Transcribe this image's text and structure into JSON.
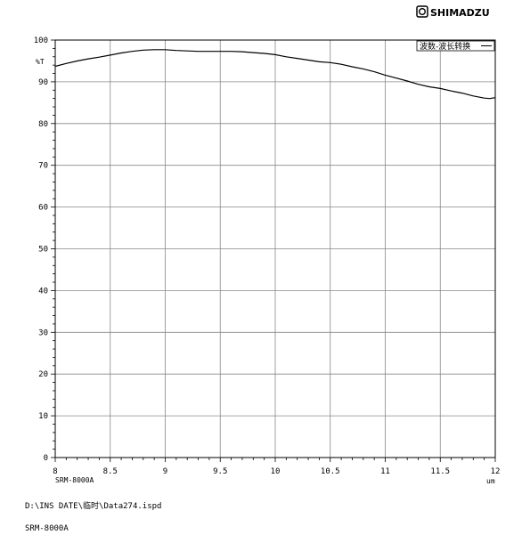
{
  "brand": {
    "name": "SHIMADZU"
  },
  "chart_data": {
    "type": "line",
    "xlabel": "um",
    "ylabel": "%T",
    "xlim": [
      8,
      12
    ],
    "ylim": [
      0,
      100
    ],
    "x_ticks": [
      8,
      8.5,
      9,
      9.5,
      10,
      10.5,
      11,
      11.5,
      12
    ],
    "x_tick_labels": [
      "8",
      "8.5",
      "9",
      "9.5",
      "10",
      "10.5",
      "11",
      "11.5",
      "12"
    ],
    "y_ticks": [
      0,
      10,
      20,
      30,
      40,
      50,
      60,
      70,
      80,
      90,
      100
    ],
    "y_tick_labels": [
      "0",
      "10",
      "20",
      "30",
      "40",
      "50",
      "60",
      "70",
      "80",
      "90",
      "100"
    ],
    "grid": true,
    "legend": {
      "label": "波数-波长转换",
      "placement": "top-right"
    },
    "inner_label": "SRM-8000A",
    "series": [
      {
        "name": "波数-波长转换",
        "x": [
          8.0,
          8.1,
          8.2,
          8.3,
          8.4,
          8.5,
          8.6,
          8.7,
          8.8,
          8.9,
          9.0,
          9.1,
          9.2,
          9.3,
          9.4,
          9.5,
          9.6,
          9.7,
          9.8,
          9.9,
          10.0,
          10.1,
          10.2,
          10.3,
          10.4,
          10.5,
          10.6,
          10.7,
          10.8,
          10.9,
          11.0,
          11.1,
          11.2,
          11.3,
          11.4,
          11.5,
          11.6,
          11.7,
          11.8,
          11.9,
          11.95,
          12.0
        ],
        "y": [
          93.7,
          94.4,
          95.0,
          95.5,
          95.9,
          96.4,
          96.9,
          97.3,
          97.6,
          97.7,
          97.7,
          97.5,
          97.4,
          97.3,
          97.3,
          97.3,
          97.3,
          97.2,
          97.0,
          96.8,
          96.5,
          96.0,
          95.6,
          95.2,
          94.8,
          94.6,
          94.2,
          93.6,
          93.1,
          92.4,
          91.6,
          90.9,
          90.2,
          89.4,
          88.8,
          88.4,
          87.8,
          87.3,
          86.6,
          86.1,
          86.0,
          86.2
        ]
      }
    ]
  },
  "footer": {
    "file_path": "D:\\INS DATE\\临时\\Data274.ispd",
    "instrument": "SRM-8000A"
  }
}
